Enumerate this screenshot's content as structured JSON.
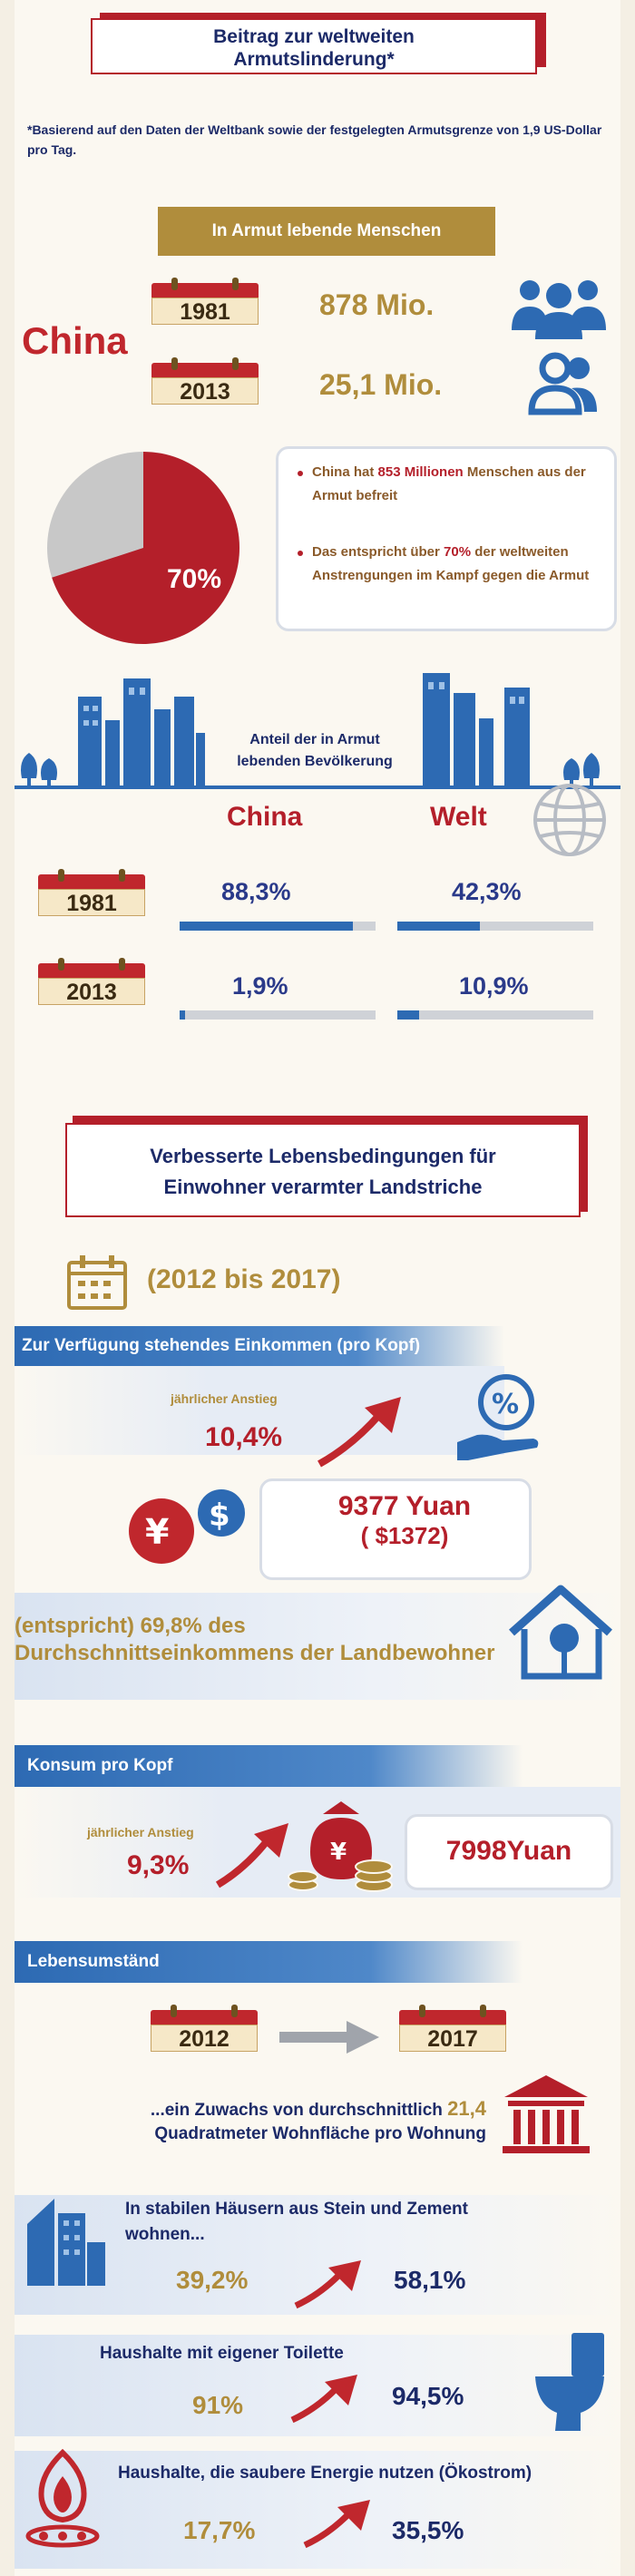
{
  "header": {
    "title_line1": "Beitrag zur weltweiten",
    "title_line2": "Armutslinderung*",
    "footnote": "*Basierend auf den Daten der Weltbank sowie der festgelegten Armutsgrenze von 1,9 US-Dollar pro Tag."
  },
  "section_poverty": {
    "band": "In Armut lebende Menschen",
    "country": "China",
    "rows": [
      {
        "year": "1981",
        "value": "878 Mio."
      },
      {
        "year": "2013",
        "value": "25,1 Mio."
      }
    ],
    "pie_share": 0.7,
    "pie_label": "70%",
    "bullet1_pre": "China hat ",
    "bullet1_highlight": "853 Millionen",
    "bullet1_post": " Menschen aus der Armut befreit",
    "bullet2_pre": "Das entspricht über ",
    "bullet2_highlight": "70%",
    "bullet2_post": " der weltweiten Anstrengungen im Kampf gegen die Armut"
  },
  "section_share": {
    "label_line1": "Anteil der in Armut",
    "label_line2": "lebenden Bevölkerung",
    "col_china": "China",
    "col_world": "Welt",
    "rows": [
      {
        "year": "1981",
        "china": "88,3%",
        "china_frac": 0.883,
        "world": "42,3%",
        "world_frac": 0.423
      },
      {
        "year": "2013",
        "china": "1,9%",
        "china_frac": 0.019,
        "world": "10,9%",
        "world_frac": 0.109
      }
    ]
  },
  "section_living": {
    "title_line1": "Verbesserte Lebensbedingungen für",
    "title_line2": "Einwohner verarmter Landstriche",
    "period": "(2012 bis 2017)",
    "income_band": "Zur Verfügung stehendes Einkommen (pro Kopf)",
    "income_increase_label": "jährlicher Anstieg",
    "income_increase_value": "10,4%",
    "income_amount": "9377 Yuan",
    "income_usd": "( $1372)",
    "rural_share_line1": "(entspricht) 69,8% des",
    "rural_share_line2": "Durchschnittseinkommens der Landbewohner",
    "consumption_band": "Konsum pro Kopf",
    "consumption_increase_label": "jährlicher Anstieg",
    "consumption_increase_value": "9,3%",
    "consumption_amount": "7998Yuan",
    "conditions_band": "Lebensumständ",
    "year_from": "2012",
    "year_to": "2017",
    "housing_line1_pre": "...ein Zuwachs von durchschnittlich ",
    "housing_value": "21,4",
    "housing_line2": "Quadratmeter Wohnfläche pro Wohnung",
    "stats": [
      {
        "label": "In stabilen Häusern aus Stein und Zement",
        "label2": "wohnen...",
        "from": "39,2%",
        "to": "58,1%"
      },
      {
        "label": "Haushalte mit eigener Toilette",
        "label2": "",
        "from": "91%",
        "to": "94,5%"
      },
      {
        "label": "Haushalte, die saubere Energie nutzen (Ökostrom)",
        "label2": "",
        "from": "17,7%",
        "to": "35,5%"
      }
    ]
  },
  "colors": {
    "red": "#b41f2a",
    "navy": "#1c2a68",
    "gold": "#b08d3c",
    "blue": "#2d6ab3",
    "brown": "#8a5a2a"
  }
}
